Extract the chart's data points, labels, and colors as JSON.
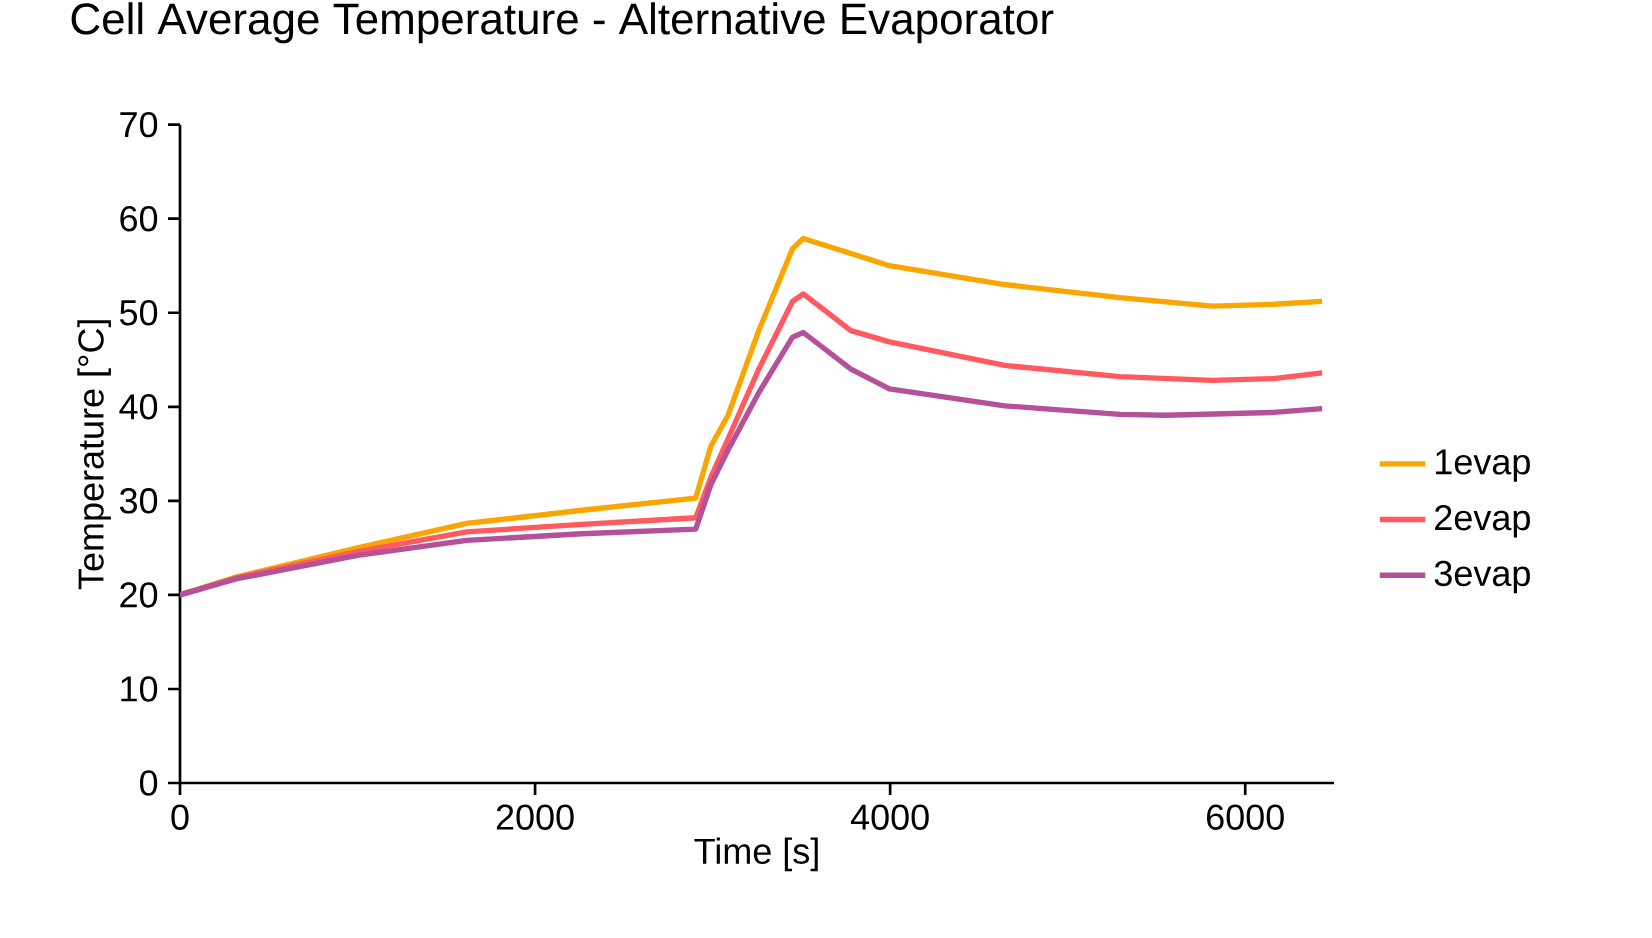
{
  "chart_data": {
    "type": "line",
    "title": "Cell Average Temperature - Alternative Evaporator",
    "xlabel": "Time [s]",
    "ylabel": "Temperature [°C]",
    "xlim": [
      0,
      6500
    ],
    "ylim": [
      0,
      70
    ],
    "xticks": [
      0,
      2000,
      4000,
      6000
    ],
    "yticks": [
      0,
      10,
      20,
      30,
      40,
      50,
      60,
      70
    ],
    "grid": false,
    "legend": "right",
    "marker": "none",
    "line_style": "solid",
    "series": [
      {
        "name": "1evap",
        "color": "#f9a602",
        "x": [
          0,
          316,
          1000,
          1615,
          2264,
          2905,
          2990,
          3087,
          3260,
          3450,
          3511,
          3996,
          4645,
          5294,
          5814,
          6160,
          6433
        ],
        "values": [
          20.0,
          21.9,
          25.0,
          27.6,
          29.0,
          30.3,
          35.8,
          39.1,
          48.1,
          56.8,
          57.9,
          55.0,
          53.0,
          51.6,
          50.7,
          50.9,
          51.2
        ]
      },
      {
        "name": "2evap",
        "color": "#ff5a5f",
        "x": [
          0,
          316,
          1000,
          1615,
          2264,
          2905,
          2990,
          3087,
          3260,
          3450,
          3511,
          3779,
          3996,
          4645,
          5294,
          5814,
          6160,
          6433
        ],
        "values": [
          20.0,
          21.8,
          24.6,
          26.7,
          27.5,
          28.2,
          32.5,
          36.6,
          44.0,
          51.2,
          52.0,
          48.1,
          46.9,
          44.4,
          43.2,
          42.8,
          43.0,
          43.6
        ]
      },
      {
        "name": "3evap",
        "color": "#b5509a",
        "x": [
          0,
          316,
          1000,
          1615,
          2264,
          2905,
          2990,
          3087,
          3260,
          3450,
          3511,
          3779,
          3996,
          4645,
          5294,
          5554,
          6160,
          6433
        ],
        "values": [
          20.0,
          21.7,
          24.2,
          25.8,
          26.5,
          27.0,
          31.7,
          35.4,
          41.5,
          47.4,
          47.9,
          44.0,
          41.9,
          40.1,
          39.2,
          39.1,
          39.4,
          39.8
        ]
      }
    ]
  }
}
